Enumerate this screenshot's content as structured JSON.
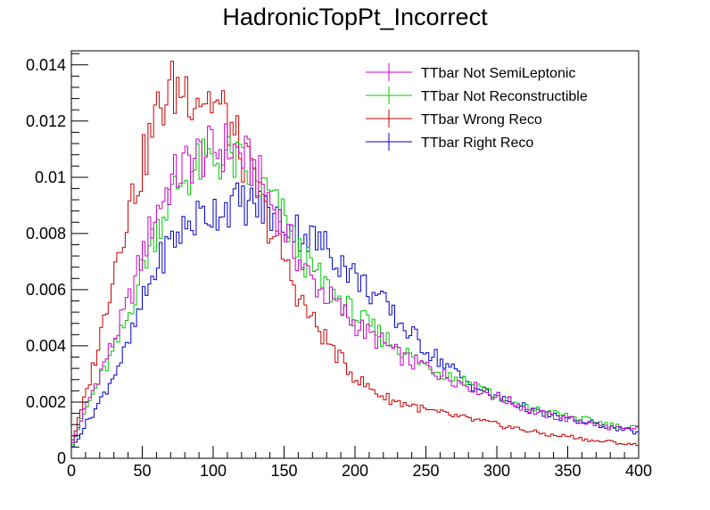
{
  "chart_data": {
    "type": "line",
    "title": "HadronicTopPt_Incorrect",
    "xlabel": "",
    "ylabel": "",
    "xlim": [
      0,
      400
    ],
    "ylim": [
      0,
      0.0145
    ],
    "grid": false,
    "legend_position": "top-right",
    "bin_width": 2,
    "x_ticks": [
      0,
      50,
      100,
      150,
      200,
      250,
      300,
      350,
      400
    ],
    "x_tick_labels": [
      "0",
      "50",
      "100",
      "150",
      "200",
      "250",
      "300",
      "350",
      "400"
    ],
    "y_ticks": [
      0,
      0.002,
      0.004,
      0.006,
      0.008,
      0.01,
      0.012,
      0.014
    ],
    "y_tick_labels": [
      "0",
      "0.002",
      "0.004",
      "0.006",
      "0.008",
      "0.01",
      "0.012",
      "0.014"
    ],
    "curve_x": [
      0,
      10,
      20,
      30,
      40,
      50,
      60,
      70,
      80,
      90,
      100,
      110,
      120,
      130,
      140,
      150,
      160,
      170,
      180,
      190,
      200,
      210,
      220,
      230,
      240,
      250,
      260,
      270,
      280,
      290,
      300,
      310,
      320,
      330,
      340,
      350,
      360,
      370,
      380,
      390,
      400
    ],
    "series": [
      {
        "name": "TTbar Not SemiLeptonic",
        "color": "#cc00cc",
        "values": [
          0.0004,
          0.0018,
          0.003,
          0.0042,
          0.0055,
          0.0072,
          0.0088,
          0.0098,
          0.0104,
          0.0108,
          0.0109,
          0.0111,
          0.0108,
          0.0102,
          0.0092,
          0.0082,
          0.0071,
          0.0063,
          0.0058,
          0.0053,
          0.0048,
          0.0044,
          0.0041,
          0.0037,
          0.0034,
          0.0033,
          0.003,
          0.0028,
          0.0026,
          0.0024,
          0.0022,
          0.002,
          0.0018,
          0.0016,
          0.0015,
          0.0014,
          0.0013,
          0.0012,
          0.0011,
          0.001,
          0.0011
        ]
      },
      {
        "name": "TTbar Not Reconstructible",
        "color": "#00cc00",
        "values": [
          0.0004,
          0.0017,
          0.0028,
          0.0038,
          0.005,
          0.0068,
          0.0082,
          0.0093,
          0.01,
          0.0104,
          0.0106,
          0.0107,
          0.0104,
          0.0099,
          0.0093,
          0.0085,
          0.0074,
          0.0067,
          0.0061,
          0.0056,
          0.0051,
          0.0047,
          0.0043,
          0.004,
          0.0036,
          0.0033,
          0.0031,
          0.0029,
          0.0027,
          0.0025,
          0.0022,
          0.002,
          0.0018,
          0.0017,
          0.0016,
          0.0015,
          0.0014,
          0.0013,
          0.0012,
          0.0011,
          0.0011
        ]
      },
      {
        "name": "TTbar Wrong Reco",
        "color": "#cc0000",
        "values": [
          0.0005,
          0.0022,
          0.0042,
          0.0068,
          0.0088,
          0.0104,
          0.0122,
          0.0131,
          0.0132,
          0.013,
          0.0127,
          0.0121,
          0.0108,
          0.0097,
          0.0082,
          0.0071,
          0.0058,
          0.0049,
          0.0042,
          0.0035,
          0.0029,
          0.0025,
          0.0022,
          0.002,
          0.0019,
          0.0017,
          0.0016,
          0.0015,
          0.0014,
          0.0013,
          0.0012,
          0.0011,
          0.001,
          0.0009,
          0.0008,
          0.0008,
          0.0007,
          0.0006,
          0.0006,
          0.0005,
          0.0005
        ]
      },
      {
        "name": "TTbar Right Reco",
        "color": "#0000cc",
        "values": [
          0.0003,
          0.0012,
          0.002,
          0.003,
          0.004,
          0.0055,
          0.0068,
          0.0077,
          0.0082,
          0.0086,
          0.0088,
          0.009,
          0.0091,
          0.009,
          0.0087,
          0.0084,
          0.0081,
          0.0078,
          0.0075,
          0.007,
          0.0065,
          0.006,
          0.0055,
          0.0049,
          0.0044,
          0.0039,
          0.0035,
          0.0031,
          0.0027,
          0.0024,
          0.0022,
          0.002,
          0.0018,
          0.0016,
          0.0015,
          0.0014,
          0.0013,
          0.0012,
          0.0011,
          0.001,
          0.0009
        ]
      }
    ]
  }
}
